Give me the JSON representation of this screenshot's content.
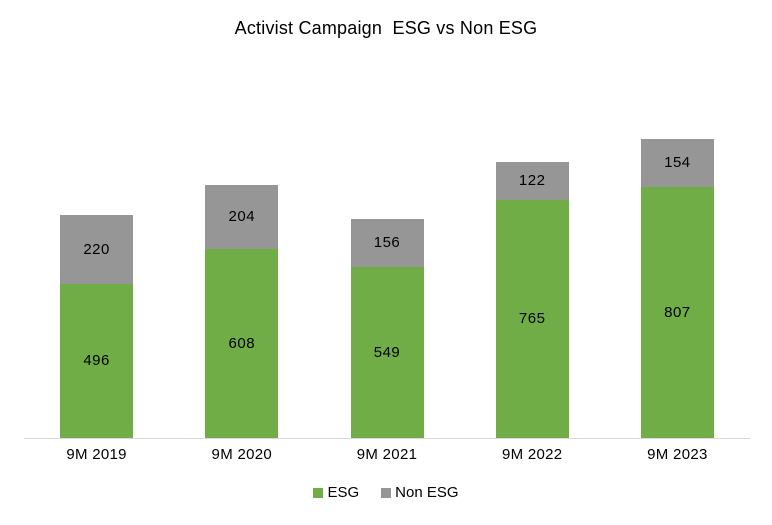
{
  "chart_data": {
    "type": "bar",
    "stacked": true,
    "title": "Activist Campaign  ESG vs Non ESG",
    "categories": [
      "9M 2019",
      "9M 2020",
      "9M 2021",
      "9M 2022",
      "9M 2023"
    ],
    "series": [
      {
        "name": "ESG",
        "color": "#70AD47",
        "values": [
          496,
          608,
          549,
          765,
          807
        ]
      },
      {
        "name": "Non ESG",
        "color": "#969696",
        "values": [
          220,
          204,
          156,
          122,
          154
        ]
      }
    ],
    "totals": [
      716,
      812,
      705,
      887,
      961
    ],
    "xlabel": "",
    "ylabel": "",
    "ylim": [
      0,
      1000
    ],
    "grid": false,
    "y_axis_visible": false,
    "data_labels": true,
    "legend_position": "bottom",
    "axis_line_color": "#d9d9d9",
    "background_color": "#ffffff",
    "text_color": "#000000"
  }
}
